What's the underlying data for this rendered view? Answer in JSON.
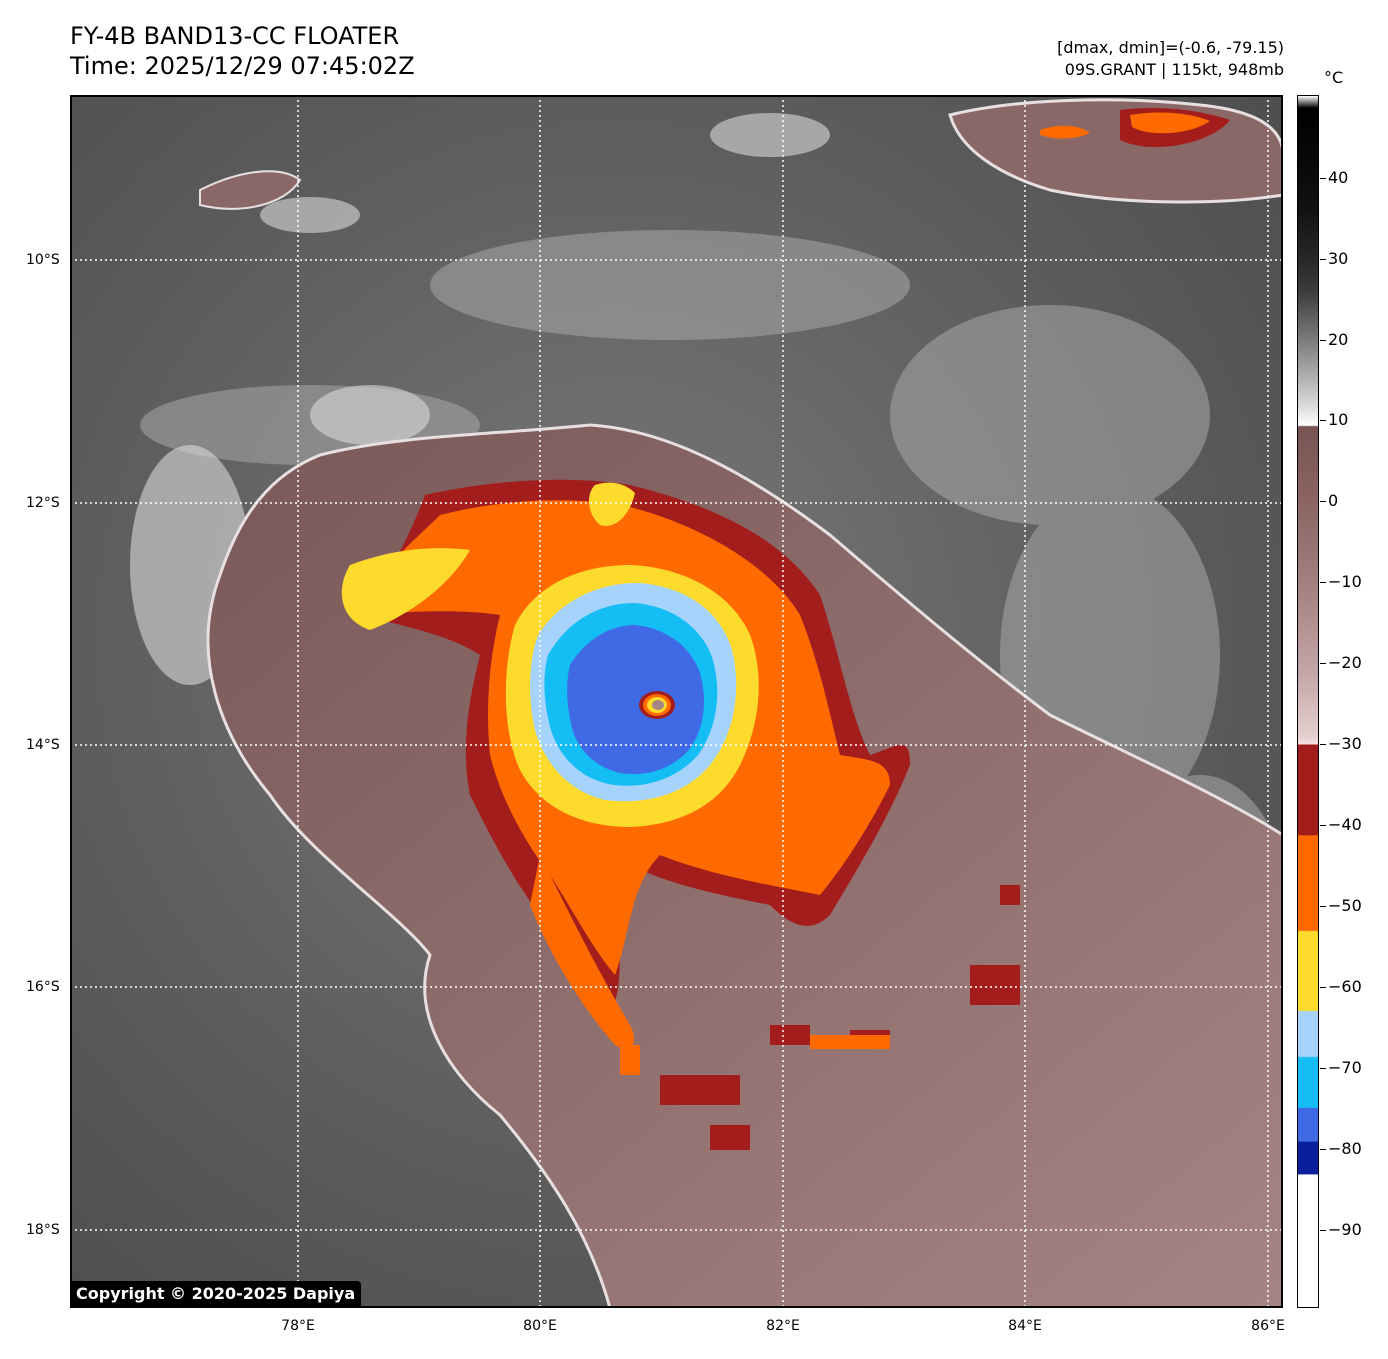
{
  "title": {
    "line1": "FY-4B BAND13-CC FLOATER",
    "line2": "Time: 2025/12/29 07:45:02Z"
  },
  "info": {
    "dmax_dmin": "[dmax, dmin]=(-0.6, -79.15)",
    "storm": "09S.GRANT | 115kt, 948mb"
  },
  "map": {
    "lat_labels": [
      "10°S",
      "12°S",
      "14°S",
      "16°S",
      "18°S"
    ],
    "lon_labels": [
      "78°E",
      "80°E",
      "82°E",
      "84°E",
      "86°E"
    ],
    "gridlines": "dotted white"
  },
  "colorbar": {
    "unit": "°C",
    "labels": [
      "40",
      "30",
      "20",
      "10",
      "0",
      "−10",
      "−20",
      "−30",
      "−40",
      "−50",
      "−60",
      "−70",
      "−80",
      "−90"
    ],
    "colors": {
      "dark_red": "#a31d1d",
      "orange": "#ff6a00",
      "yellow": "#fddb2c",
      "light_blue": "#a6d3fb",
      "cyan": "#14bef5",
      "royal_blue": "#4069e6",
      "navy": "#0b1f9c"
    }
  },
  "copyright": "Copyright © 2020-2025 Dapiya"
}
